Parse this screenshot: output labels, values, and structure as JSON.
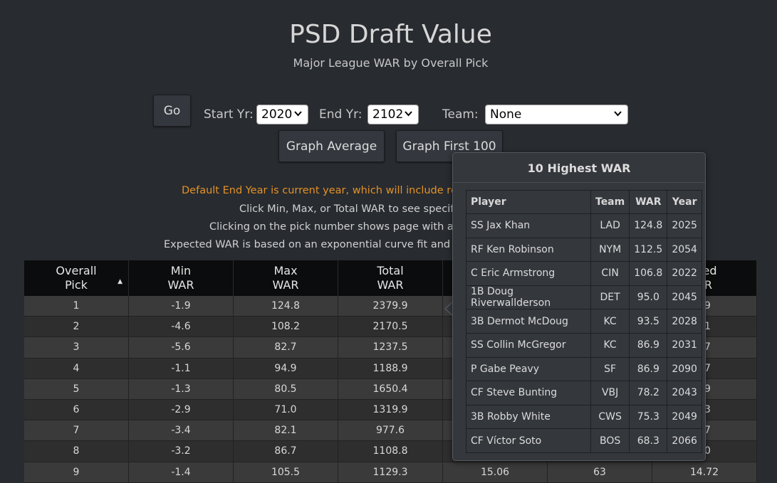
{
  "header": {
    "title": "PSD Draft Value",
    "subtitle": "Major League WAR by Overall Pick"
  },
  "controls": {
    "go_label": "Go",
    "start_label": "Start Yr:",
    "start_value": "2020",
    "end_label": "End Yr:",
    "end_value": "2102",
    "team_label": "Team:",
    "team_value": "None",
    "graph_avg_label": "Graph Average",
    "graph_first_label": "Graph First 100"
  },
  "notes": {
    "line1": "Default End Year is current year, which will include recen",
    "line2": "Click Min, Max, or Total WAR to see specific p",
    "line3": "Clicking on the pick number shows page with all pl",
    "line4": "Expected WAR is based on an exponential curve fit and may"
  },
  "table": {
    "headers": [
      [
        "Overall",
        "Pick"
      ],
      [
        "Min",
        "WAR"
      ],
      [
        "Max",
        "WAR"
      ],
      [
        "Total",
        "WAR"
      ],
      [
        "",
        ""
      ],
      [
        "",
        ""
      ],
      [
        "cted",
        "AR"
      ]
    ],
    "rows": [
      [
        "1",
        "-1.9",
        "124.8",
        "2379.9",
        "",
        "",
        "69"
      ],
      [
        "2",
        "-4.6",
        "108.2",
        "2170.5",
        "",
        "",
        "01"
      ],
      [
        "3",
        "-5.6",
        "82.7",
        "1237.5",
        "",
        "",
        "47"
      ],
      [
        "4",
        "-1.1",
        "94.9",
        "1188.9",
        "",
        "",
        "07"
      ],
      [
        "5",
        "-1.3",
        "80.5",
        "1650.4",
        "",
        "",
        "79"
      ],
      [
        "6",
        "-2.9",
        "71.0",
        "1319.9",
        "",
        "",
        "63"
      ],
      [
        "7",
        "-3.4",
        "82.1",
        "977.6",
        "",
        "",
        "57"
      ],
      [
        "8",
        "-3.2",
        "86.7",
        "1108.8",
        "",
        "",
        "60"
      ],
      [
        "9",
        "-1.4",
        "105.5",
        "1129.3",
        "15.06",
        "63",
        "14.72"
      ]
    ]
  },
  "popup": {
    "title": "10 Highest WAR",
    "headers": [
      "Player",
      "Team",
      "WAR",
      "Year"
    ],
    "rows": [
      [
        "SS Jax Khan",
        "LAD",
        "124.8",
        "2025"
      ],
      [
        "RF Ken Robinson",
        "NYM",
        "112.5",
        "2054"
      ],
      [
        "C Eric Armstrong",
        "CIN",
        "106.8",
        "2022"
      ],
      [
        "1B Doug Riverwallderson",
        "DET",
        "95.0",
        "2045"
      ],
      [
        "3B Dermot McDoug",
        "KC",
        "93.5",
        "2028"
      ],
      [
        "SS Collin McGregor",
        "KC",
        "86.9",
        "2031"
      ],
      [
        "P Gabe Peavy",
        "SF",
        "86.9",
        "2090"
      ],
      [
        "CF Steve Bunting",
        "VBJ",
        "78.2",
        "2043"
      ],
      [
        "3B Robby White",
        "CWS",
        "75.3",
        "2049"
      ],
      [
        "CF Víctor Soto",
        "BOS",
        "68.3",
        "2066"
      ]
    ]
  },
  "colors": {
    "background": "#282b30",
    "note_orange": "#e39226",
    "header_bg": "#0b0c0d"
  }
}
